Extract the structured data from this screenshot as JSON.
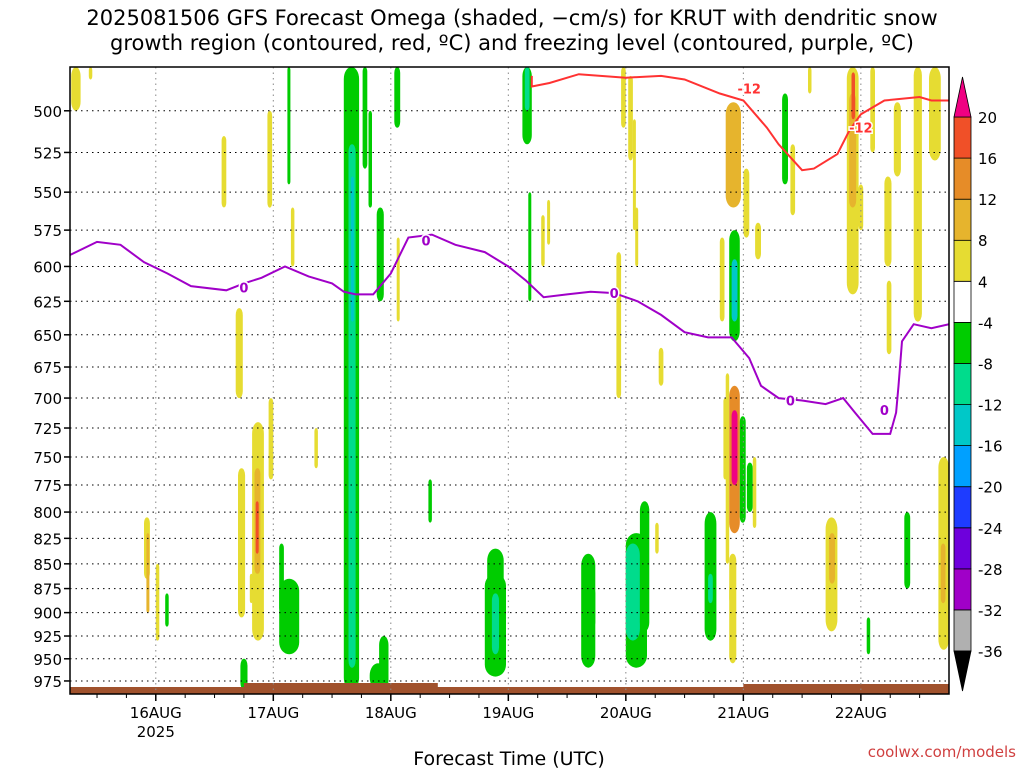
{
  "title_line1": "2025081506 GFS Forecast Omega (shaded, −cm/s) for KRUT with dendritic snow",
  "title_line2": "growth region (contoured, red, ºC) and freezing level (contoured, purple, ºC)",
  "credit": "coolwx.com/models",
  "chart_data": {
    "type": "heatmap",
    "xlabel": "Forecast Time (UTC)",
    "ylabel": "",
    "x_ticks": [
      "16AUG",
      "17AUG",
      "18AUG",
      "19AUG",
      "20AUG",
      "21AUG",
      "22AUG"
    ],
    "x_tick_year": "2025",
    "x_range_days": [
      15.27,
      22.75
    ],
    "y_ticks": [
      500,
      525,
      550,
      575,
      600,
      625,
      650,
      675,
      700,
      725,
      750,
      775,
      800,
      825,
      850,
      875,
      900,
      925,
      950,
      975
    ],
    "y_range_hpa": [
      475,
      990
    ],
    "y_scale": "log-pressure",
    "grid": true,
    "colorbar": {
      "levels": [
        -36,
        -32,
        -28,
        -24,
        -20,
        -16,
        -12,
        -8,
        -4,
        4,
        8,
        12,
        16,
        20
      ],
      "colors": [
        "#b0b0b0",
        "#a000c8",
        "#6e00dc",
        "#1e3cff",
        "#00a0ff",
        "#00c8c8",
        "#00dc8c",
        "#00cc00",
        "#ffffff",
        "#e6dc32",
        "#e6b42d",
        "#e68c28",
        "#f05028",
        "#f00082"
      ],
      "below_color": "#000000",
      "above_color": "#f00082"
    },
    "freezing_level": {
      "label": "0",
      "color": "#a000c8",
      "points": [
        [
          15.27,
          592
        ],
        [
          15.5,
          583
        ],
        [
          15.7,
          585
        ],
        [
          15.9,
          597
        ],
        [
          16.1,
          605
        ],
        [
          16.3,
          614
        ],
        [
          16.6,
          617
        ],
        [
          16.75,
          612
        ],
        [
          16.9,
          608
        ],
        [
          17.1,
          600
        ],
        [
          17.3,
          607
        ],
        [
          17.5,
          612
        ],
        [
          17.6,
          618
        ],
        [
          17.7,
          620
        ],
        [
          17.85,
          620
        ],
        [
          18.0,
          605
        ],
        [
          18.15,
          580
        ],
        [
          18.35,
          578
        ],
        [
          18.55,
          585
        ],
        [
          18.8,
          590
        ],
        [
          19.0,
          600
        ],
        [
          19.15,
          610
        ],
        [
          19.3,
          622
        ],
        [
          19.5,
          620
        ],
        [
          19.7,
          618
        ],
        [
          19.9,
          619
        ],
        [
          20.1,
          625
        ],
        [
          20.3,
          635
        ],
        [
          20.5,
          648
        ],
        [
          20.7,
          652
        ],
        [
          20.9,
          652
        ],
        [
          21.05,
          668
        ],
        [
          21.15,
          690
        ],
        [
          21.3,
          700
        ],
        [
          21.5,
          702
        ],
        [
          21.7,
          705
        ],
        [
          21.85,
          700
        ],
        [
          21.95,
          712
        ],
        [
          22.1,
          730
        ],
        [
          22.25,
          730
        ],
        [
          22.3,
          712
        ],
        [
          22.32,
          690
        ],
        [
          22.35,
          655
        ],
        [
          22.45,
          642
        ],
        [
          22.6,
          645
        ],
        [
          22.75,
          642
        ]
      ]
    },
    "dgz_contour": {
      "label": "-12",
      "color": "#ff3232",
      "points": [
        [
          19.2,
          480
        ],
        [
          19.2,
          486
        ],
        [
          19.35,
          484
        ],
        [
          19.6,
          479
        ],
        [
          20.0,
          481
        ],
        [
          20.3,
          480
        ],
        [
          20.5,
          482
        ],
        [
          20.8,
          490
        ],
        [
          21.0,
          494
        ],
        [
          21.2,
          510
        ],
        [
          21.3,
          520
        ],
        [
          21.5,
          536
        ],
        [
          21.6,
          535
        ],
        [
          21.8,
          526
        ],
        [
          21.9,
          512
        ],
        [
          22.0,
          502
        ],
        [
          22.2,
          494
        ],
        [
          22.5,
          492
        ],
        [
          22.6,
          494
        ],
        [
          22.75,
          494
        ]
      ]
    }
  }
}
